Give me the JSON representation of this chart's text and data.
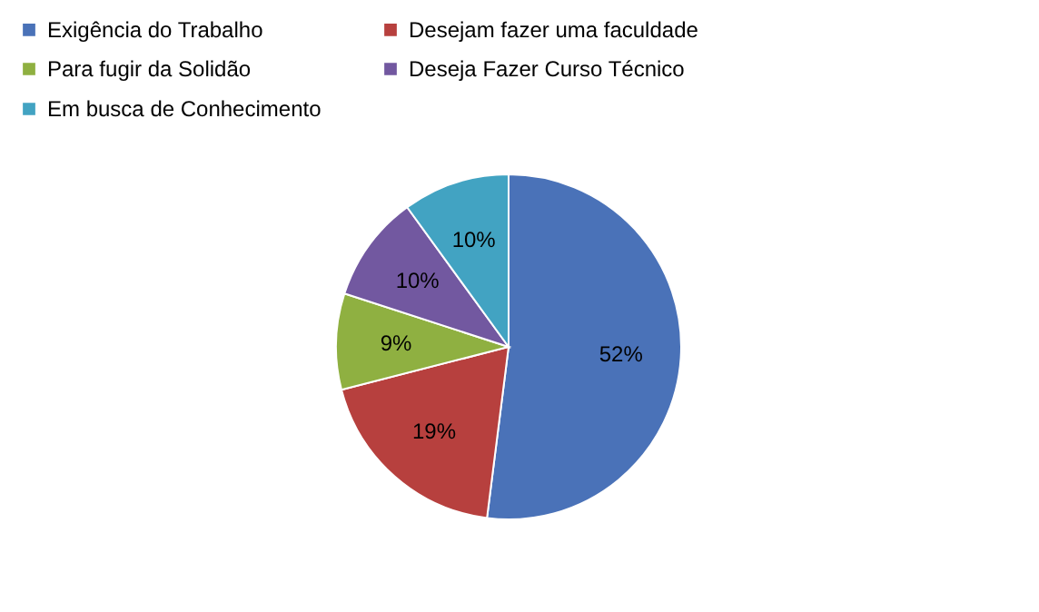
{
  "chart_data": {
    "type": "pie",
    "categories": [
      "Exigência do Trabalho",
      "Desejam fazer uma faculdade",
      "Para fugir da Solidão",
      "Deseja Fazer Curso Técnico",
      "Em busca de Conhecimento"
    ],
    "values": [
      52,
      19,
      9,
      10,
      10
    ],
    "colors": [
      "#4a72b8",
      "#b7403e",
      "#8fb041",
      "#7258a0",
      "#42a3c2"
    ],
    "value_labels": [
      "52%",
      "19%",
      "9%",
      "10%",
      "10%"
    ],
    "legend": "top"
  }
}
